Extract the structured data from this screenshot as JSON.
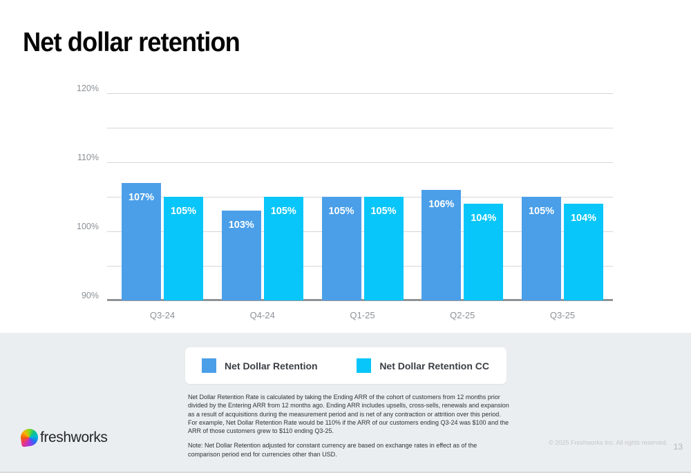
{
  "slide": {
    "title": "Net dollar retention",
    "logo_text": "freshworks",
    "copyright": "© 2025 Freshworks Inc. All rights reserved.",
    "page_number": "13"
  },
  "chart_data": {
    "type": "bar",
    "title": "Net dollar retention",
    "categories": [
      "Q3-24",
      "Q4-24",
      "Q1-25",
      "Q2-25",
      "Q3-25"
    ],
    "series": [
      {
        "name": "Net Dollar Retention",
        "color": "#4B9FE9",
        "values": [
          107,
          103,
          105,
          106,
          105
        ]
      },
      {
        "name": "Net Dollar Retention CC",
        "color": "#08C6F9",
        "values": [
          105,
          105,
          105,
          104,
          104
        ]
      }
    ],
    "value_suffix": "%",
    "ylim": [
      90,
      120
    ],
    "gridline_interval": 5,
    "yticks": [
      {
        "value": 120,
        "label": "120%"
      },
      {
        "value": 110,
        "label": "110%"
      },
      {
        "value": 100,
        "label": "100%"
      },
      {
        "value": 90,
        "label": "90%"
      }
    ],
    "grid": true,
    "legend_position": "bottom",
    "gridline_color": "#d6d6d6",
    "axis_color": "#8f9396"
  },
  "legend": {
    "items": [
      {
        "label": "Net Dollar Retention",
        "color": "#4B9FE9"
      },
      {
        "label": "Net Dollar Retention CC",
        "color": "#08C6F9"
      }
    ]
  },
  "footnotes": {
    "definition": "Net Dollar Retention Rate is calculated by taking the Ending ARR of the cohort of customers from 12 months prior divided by the Entering ARR from 12 months ago. Ending ARR includes upsells, cross-sells, renewals and expansion as a result of acquisitions during the measurement period and is net of any contraction or attrition over this period. For example, Net Dollar Retention Rate would be 110% if the ARR of our customers ending Q3-24 was $100 and the ARR of those customers grew to $110 ending Q3-25.",
    "note": "Note: Net Dollar Retention adjusted for constant currency are based on exchange rates in effect as of the comparison period end for currencies other than USD."
  }
}
